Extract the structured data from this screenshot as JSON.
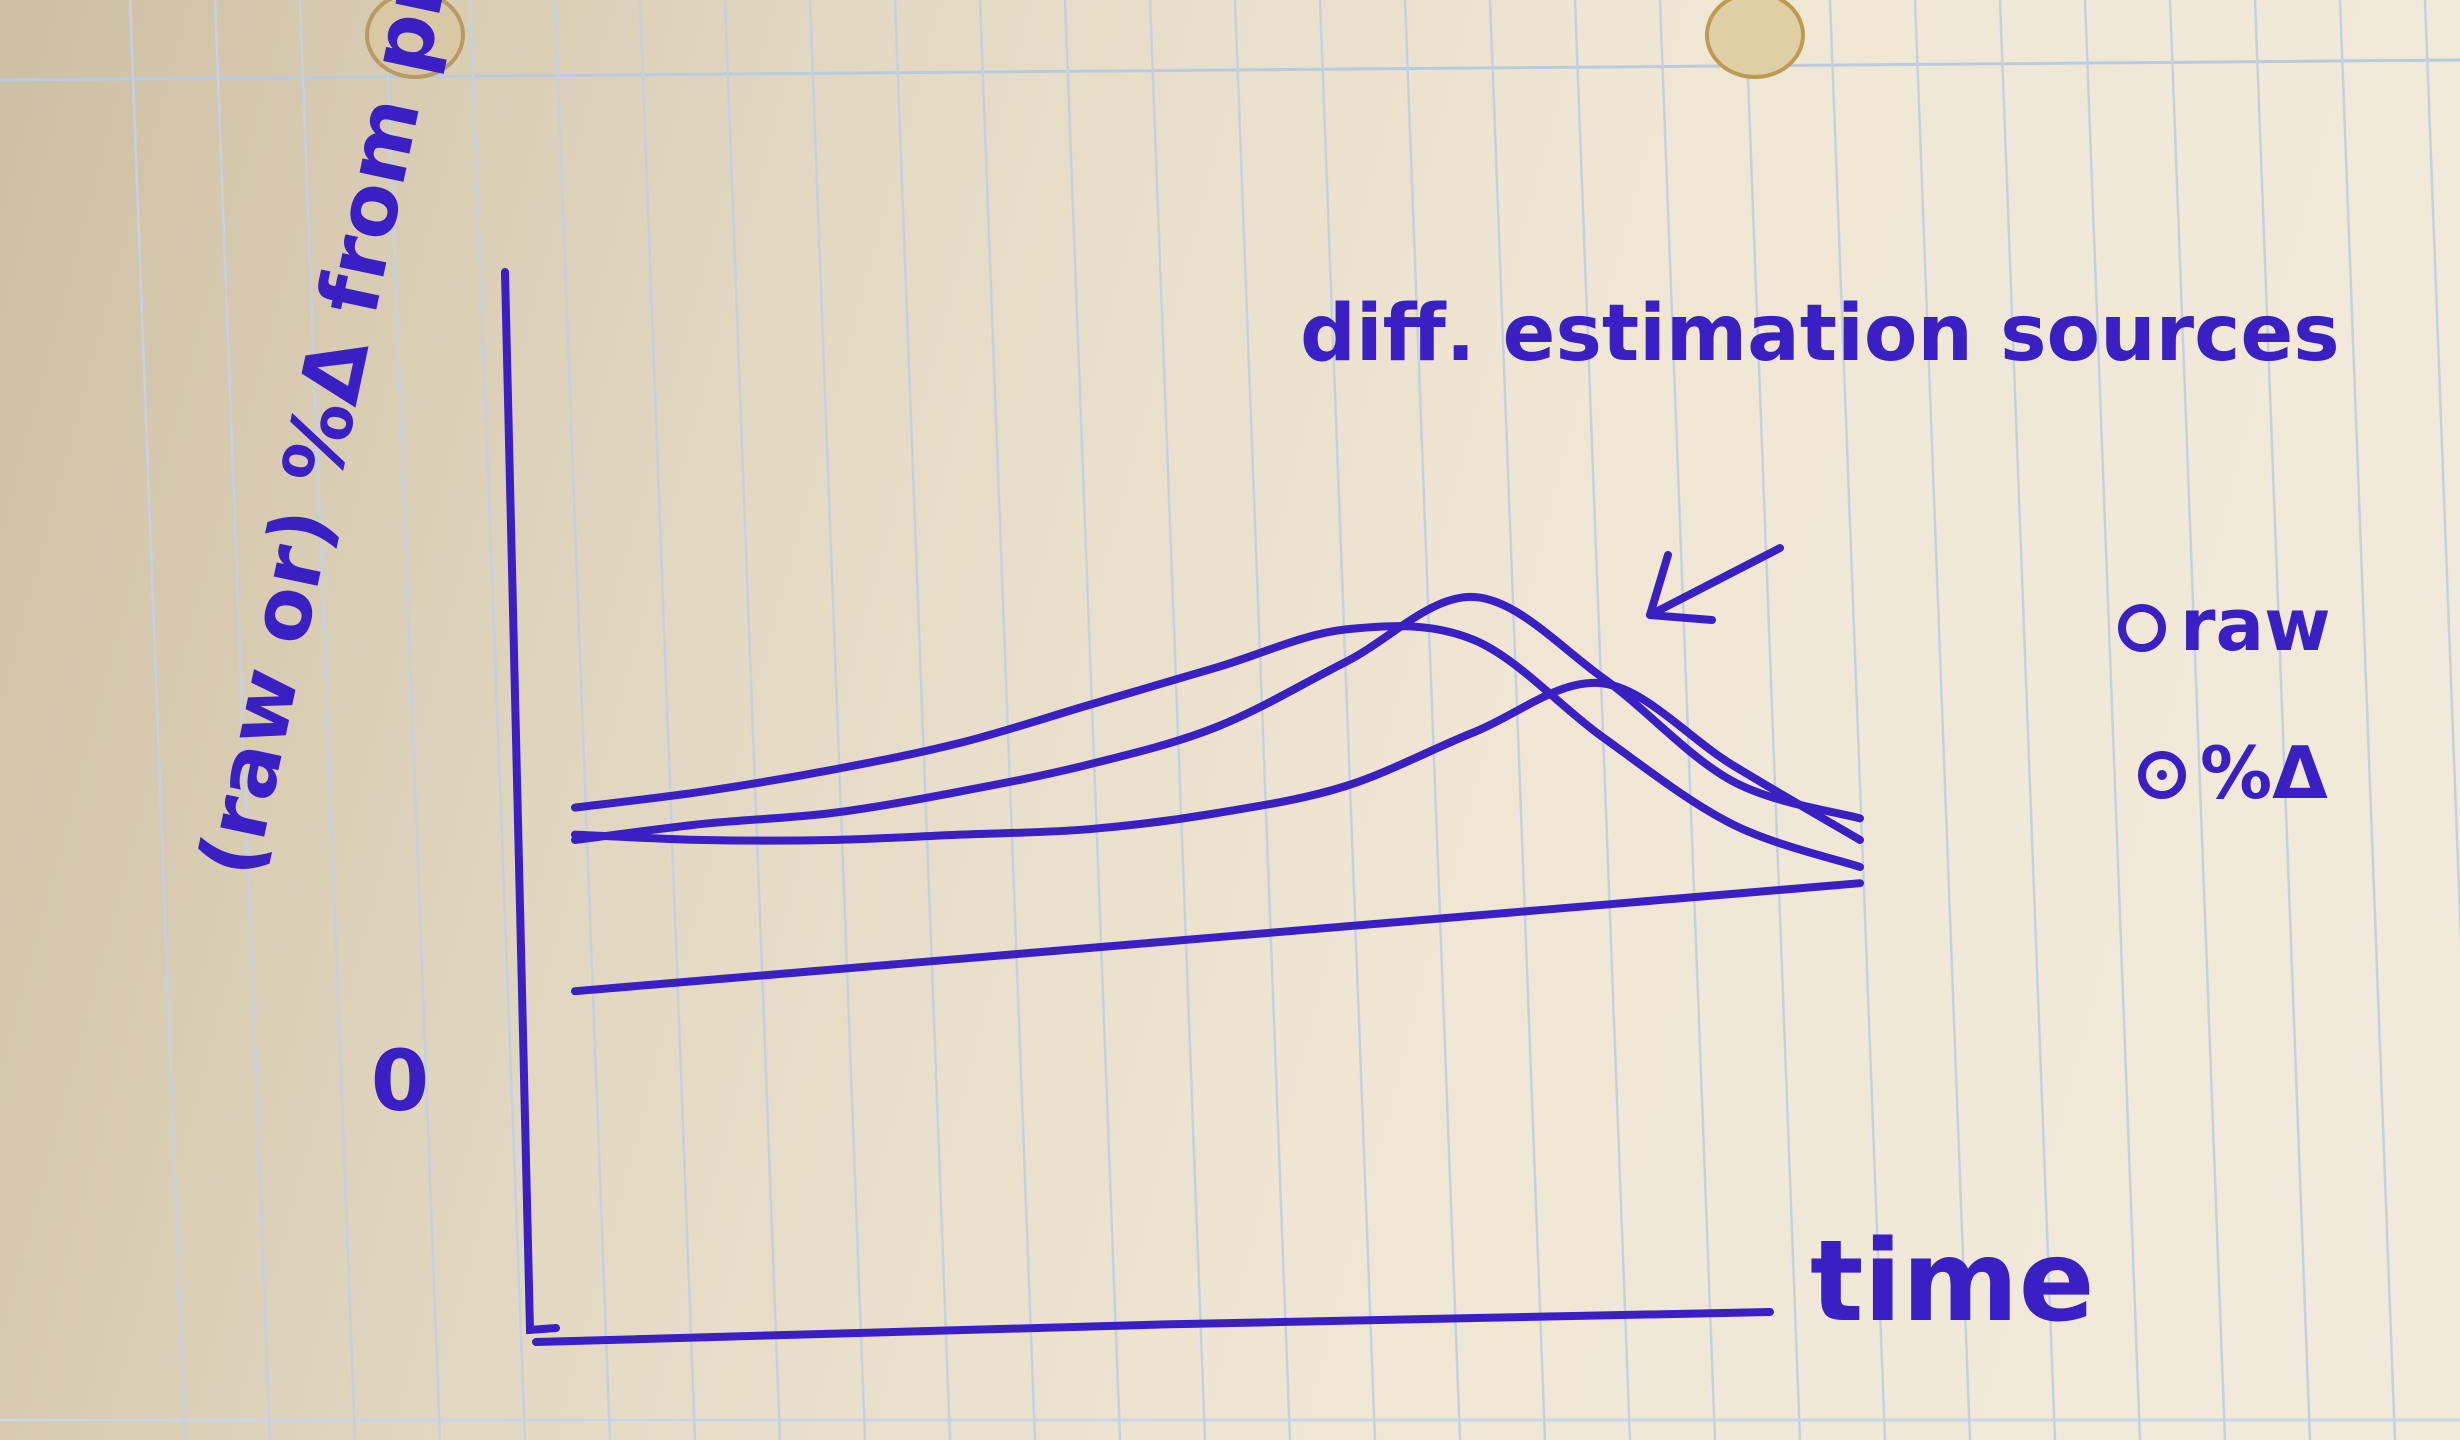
{
  "chart_data": {
    "type": "line",
    "title": "",
    "xlabel": "time",
    "ylabel": "(raw or) %Δ from previous yr.",
    "y_tick_labels": [
      "0"
    ],
    "annotation": "diff. estimation sources",
    "legend": {
      "placement": "right",
      "entries": [
        {
          "marker": "open-circle",
          "label": "raw"
        },
        {
          "marker": "dotted-circle",
          "label": "%Δ"
        }
      ]
    },
    "x": [
      0,
      1,
      2,
      3,
      4,
      5,
      6,
      7,
      8,
      9,
      10
    ],
    "xlim": [
      0,
      10
    ],
    "ylim": [
      0,
      10
    ],
    "grid": false,
    "series": [
      {
        "values": [
          5.6,
          5.9,
          6.3,
          6.8,
          7.5,
          8.2,
          8.9,
          8.7,
          6.9,
          5.3,
          4.5
        ]
      },
      {
        "values": [
          5.0,
          5.3,
          5.5,
          5.9,
          6.4,
          7.1,
          8.3,
          9.5,
          8.0,
          6.1,
          5.4
        ]
      },
      {
        "values": [
          5.1,
          5.0,
          5.0,
          5.1,
          5.2,
          5.5,
          6.0,
          7.0,
          7.9,
          6.4,
          5.0
        ]
      },
      {
        "values": [
          2.2,
          2.4,
          2.6,
          2.8,
          3.0,
          3.2,
          3.4,
          3.6,
          3.8,
          4.0,
          4.2
        ]
      }
    ]
  }
}
